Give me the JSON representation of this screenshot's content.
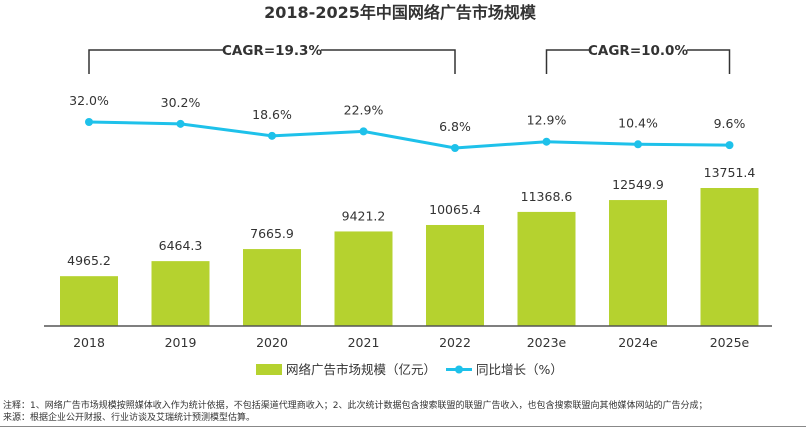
{
  "chart_data": {
    "type": "bar+line",
    "title": "2018-2025年中国网络广告市场规模",
    "categories": [
      "2018",
      "2019",
      "2020",
      "2021",
      "2022",
      "2023e",
      "2024e",
      "2025e"
    ],
    "series": [
      {
        "name": "网络广告市场规模（亿元）",
        "type": "bar",
        "color": "#b5d22f",
        "values": [
          4965.2,
          6464.3,
          7665.9,
          9421.2,
          10065.4,
          11368.6,
          12549.9,
          13751.4
        ],
        "labels": [
          "4965.2",
          "6464.3",
          "7665.9",
          "9421.2",
          "10065.4",
          "11368.6",
          "12549.9",
          "13751.4"
        ]
      },
      {
        "name": "同比增长（%）",
        "type": "line",
        "color": "#1ec1ea",
        "values": [
          32.0,
          30.2,
          18.6,
          22.9,
          6.8,
          12.9,
          10.4,
          9.6
        ],
        "labels": [
          "32.0%",
          "30.2%",
          "18.6%",
          "22.9%",
          "6.8%",
          "12.9%",
          "10.4%",
          "9.6%"
        ]
      }
    ],
    "annotations": [
      {
        "text": "CAGR=19.3%",
        "from": "2018",
        "to": "2022"
      },
      {
        "text": "CAGR=10.0%",
        "from": "2023e",
        "to": "2025e"
      }
    ],
    "ylim_bar": [
      0,
      15000
    ],
    "ylim_line": [
      0,
      40
    ],
    "legend": "bottom-center"
  },
  "notes": {
    "line1": "注释：1、网络广告市场规模按照媒体收入作为统计依据，不包括渠道代理商收入；2、此次统计数据包含搜索联盟的联盟广告收入，也包含搜索联盟向其他媒体网站的广告分成；",
    "line2": "来源：根据企业公开财报、行业访谈及艾瑞统计预测模型估算。"
  }
}
